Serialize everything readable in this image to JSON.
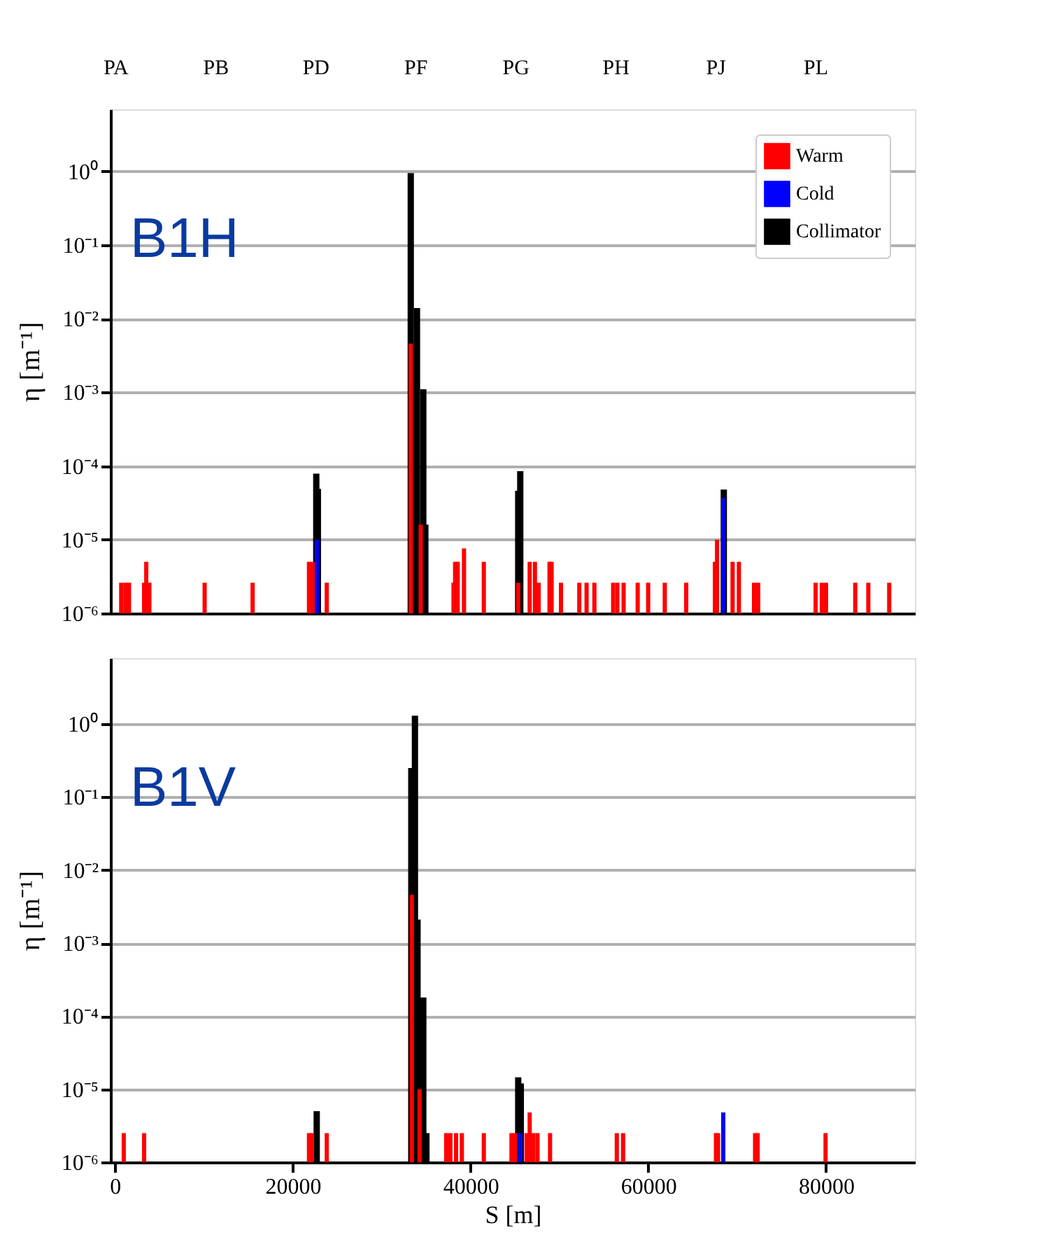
{
  "chart_data": [
    {
      "type": "bar",
      "log": true,
      "grid": "y",
      "legend": "top right",
      "tick_labels": "y",
      "ylabel": "η  [m⁻¹]",
      "annotations": [
        "B1H",
        "PA",
        "PB",
        "PD",
        "PF",
        "PG",
        "PH",
        "PJ",
        "PL"
      ],
      "xlim": [
        -500,
        90000
      ],
      "ylim": [
        1e-06,
        7
      ],
      "yticks": [
        {
          "value": 1e-06,
          "label": "10⁻⁶"
        },
        {
          "value": 1e-05,
          "label": "10⁻⁵"
        },
        {
          "value": 0.0001,
          "label": "10⁻⁴"
        },
        {
          "value": 0.001,
          "label": "10⁻³"
        },
        {
          "value": 0.01,
          "label": "10⁻²"
        },
        {
          "value": 0.1,
          "label": "10⁻¹"
        },
        {
          "value": 1,
          "label": "10⁰"
        }
      ],
      "series": [
        {
          "name": "Warm",
          "color": "#ff0000",
          "x": [
            700,
            1170,
            1580,
            3280,
            3520,
            3870,
            10090,
            15490,
            21830,
            22240,
            23830,
            33280,
            34400,
            38090,
            38270,
            38560,
            39270,
            41500,
            45370,
            46660,
            47250,
            47660,
            48890,
            49130,
            50180,
            52240,
            53060,
            53940,
            56050,
            56520,
            57230,
            58810,
            59990,
            61860,
            64270,
            67500,
            67740,
            69490,
            70200,
            71900,
            72370,
            78830,
            79530,
            80000,
            83290,
            84760,
            87110
          ],
          "values": [
            2.6e-06,
            2.6e-06,
            2.6e-06,
            2.6e-06,
            5e-06,
            2.6e-06,
            2.6e-06,
            2.6e-06,
            5e-06,
            5e-06,
            2.6e-06,
            0.0046,
            1.6e-05,
            2.6e-06,
            5e-06,
            5e-06,
            7.6e-06,
            5e-06,
            2.6e-06,
            5e-06,
            5e-06,
            2.6e-06,
            5e-06,
            5e-06,
            2.6e-06,
            2.6e-06,
            2.6e-06,
            2.6e-06,
            2.6e-06,
            2.6e-06,
            2.6e-06,
            2.6e-06,
            2.6e-06,
            2.6e-06,
            2.6e-06,
            5e-06,
            1e-05,
            5e-06,
            5e-06,
            2.6e-06,
            2.6e-06,
            2.6e-06,
            2.6e-06,
            2.6e-06,
            2.6e-06,
            2.6e-06,
            2.6e-06
          ]
        },
        {
          "name": "Cold",
          "color": "#0000ff",
          "x": [
            22710,
            68440
          ],
          "values": [
            1e-05,
            3.7e-05
          ]
        },
        {
          "name": "Collimator",
          "color": "#000000",
          "x": [
            22650,
            22830,
            33280,
            33980,
            34690,
            34920,
            45370,
            45600,
            68500
          ],
          "values": [
            7.9e-05,
            4.9e-05,
            0.95,
            0.014,
            0.0011,
            1.6e-05,
            4.6e-05,
            8.5e-05,
            4.8e-05
          ]
        }
      ]
    },
    {
      "type": "bar",
      "log": true,
      "grid": "y",
      "ylabel": "η  [m⁻¹]",
      "xlabel": "S  [m]",
      "annotations": [
        "B1V"
      ],
      "xlim": [
        -500,
        90000
      ],
      "ylim": [
        1e-06,
        8
      ],
      "xticks": [
        0,
        20000,
        40000,
        60000,
        80000
      ],
      "yticks": [
        {
          "value": 1e-06,
          "label": "10⁻⁶"
        },
        {
          "value": 1e-05,
          "label": "10⁻⁵"
        },
        {
          "value": 0.0001,
          "label": "10⁻⁴"
        },
        {
          "value": 0.001,
          "label": "10⁻³"
        },
        {
          "value": 0.01,
          "label": "10⁻²"
        },
        {
          "value": 0.1,
          "label": "10⁻¹"
        },
        {
          "value": 1,
          "label": "10⁰"
        }
      ],
      "series": [
        {
          "color": "#ff0000",
          "x": [
            990,
            3280,
            21830,
            22130,
            23830,
            33400,
            34270,
            37270,
            37740,
            38380,
            39030,
            41500,
            44610,
            45020,
            46310,
            46660,
            47070,
            47540,
            48950,
            56460,
            57170,
            67620,
            67850,
            72020,
            72310,
            79950
          ],
          "values": [
            2.5e-06,
            2.5e-06,
            2.5e-06,
            2.5e-06,
            2.5e-06,
            0.0046,
            1e-05,
            2.5e-06,
            2.5e-06,
            2.5e-06,
            2.5e-06,
            2.5e-06,
            2.5e-06,
            2.5e-06,
            2.5e-06,
            4.8e-06,
            2.5e-06,
            2.5e-06,
            2.5e-06,
            2.5e-06,
            2.5e-06,
            2.5e-06,
            2.5e-06,
            2.5e-06,
            2.5e-06,
            2.5e-06
          ]
        },
        {
          "color": "#0000ff",
          "x": [
            45600,
            68440
          ],
          "values": [
            2.5e-06,
            4.8e-06
          ]
        },
        {
          "color": "#000000",
          "x": [
            22700,
            33340,
            33750,
            34040,
            34690,
            35040,
            45370,
            45660
          ],
          "values": [
            5e-06,
            0.25,
            1.3,
            0.0021,
            0.00018,
            2.5e-06,
            1.45e-05,
            1.2e-05
          ]
        }
      ]
    }
  ]
}
